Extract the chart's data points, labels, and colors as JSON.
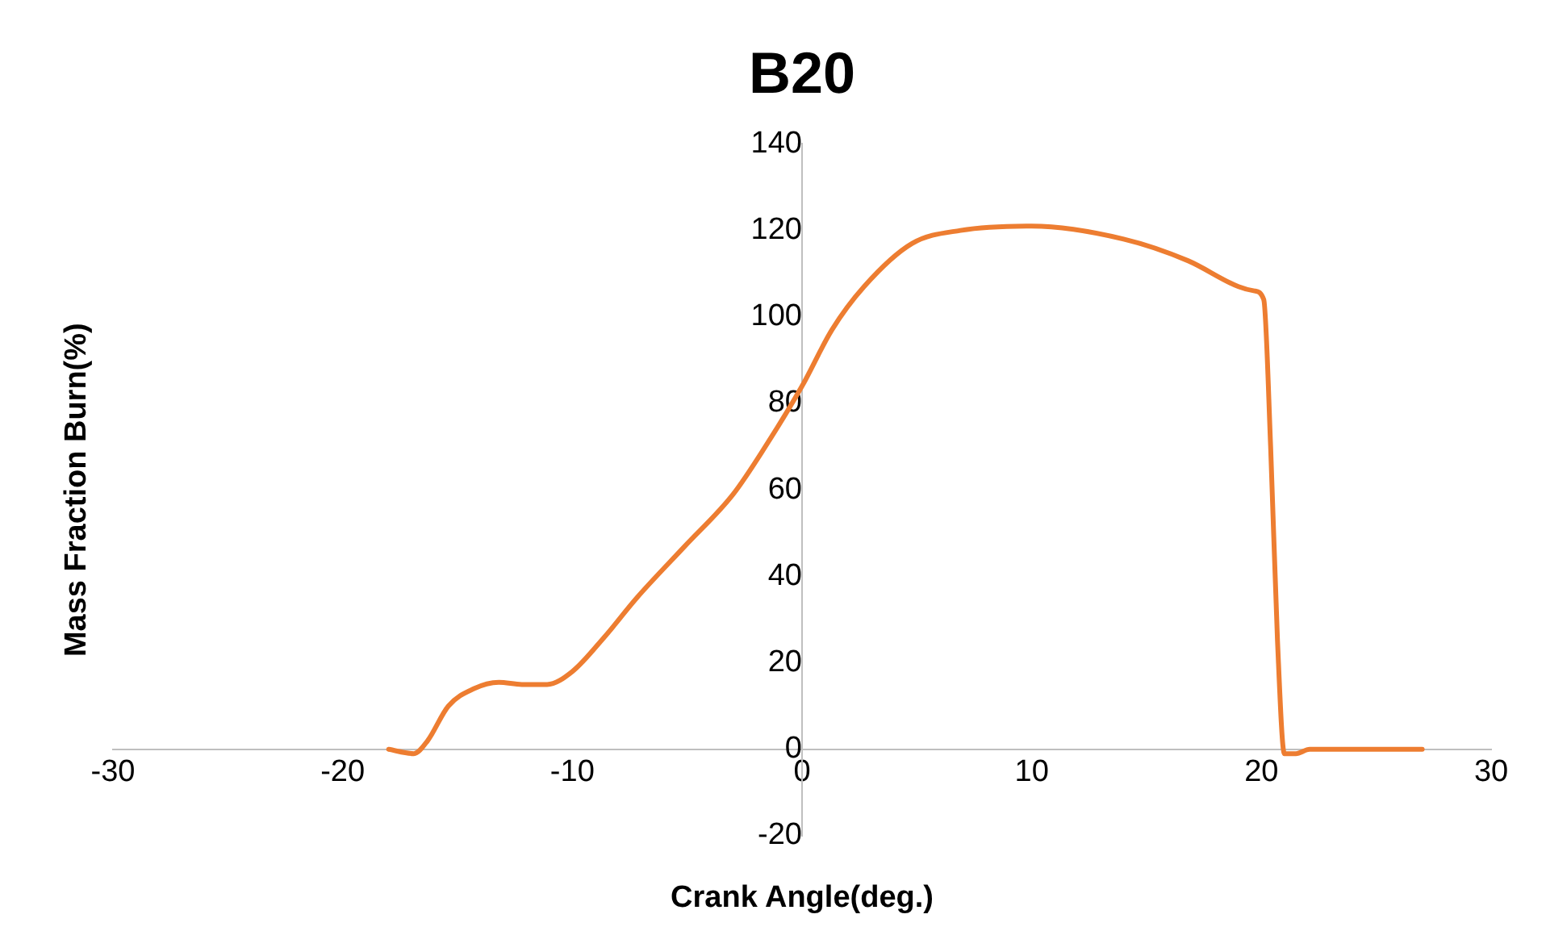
{
  "chart_data": {
    "type": "line",
    "title": "B20",
    "xlabel": "Crank Angle(deg.)",
    "ylabel": "Mass Fraction Burn(%)",
    "xlim": [
      -30,
      30
    ],
    "xticks": [
      -30,
      -20,
      -10,
      0,
      10,
      20,
      30
    ],
    "ylim": [
      -20,
      140
    ],
    "yticks": [
      -20,
      0,
      20,
      40,
      60,
      80,
      100,
      120,
      140
    ],
    "grid": false,
    "legend": false,
    "marker": "none",
    "line_style": "solid",
    "series": [
      {
        "color": "#ed7d31",
        "x": [
          -18,
          -16.9,
          -16.3,
          -15.4,
          -14.3,
          -13.2,
          -12.2,
          -11.1,
          -10,
          -8.6,
          -7.2,
          -5.1,
          -3,
          -1.6,
          0,
          1.3,
          2.7,
          4.8,
          6.9,
          10,
          14,
          16.8,
          19,
          19.7,
          20.1,
          20.4,
          20.7,
          21,
          21.5,
          22.1,
          27
        ],
        "values": [
          0,
          -1,
          2,
          10,
          14,
          15.5,
          15,
          15,
          18,
          26,
          35,
          47,
          59,
          70,
          84,
          97,
          107,
          117,
          120,
          121,
          118,
          113,
          107,
          106,
          104,
          70,
          25,
          -1,
          -1,
          0,
          0
        ]
      }
    ]
  }
}
